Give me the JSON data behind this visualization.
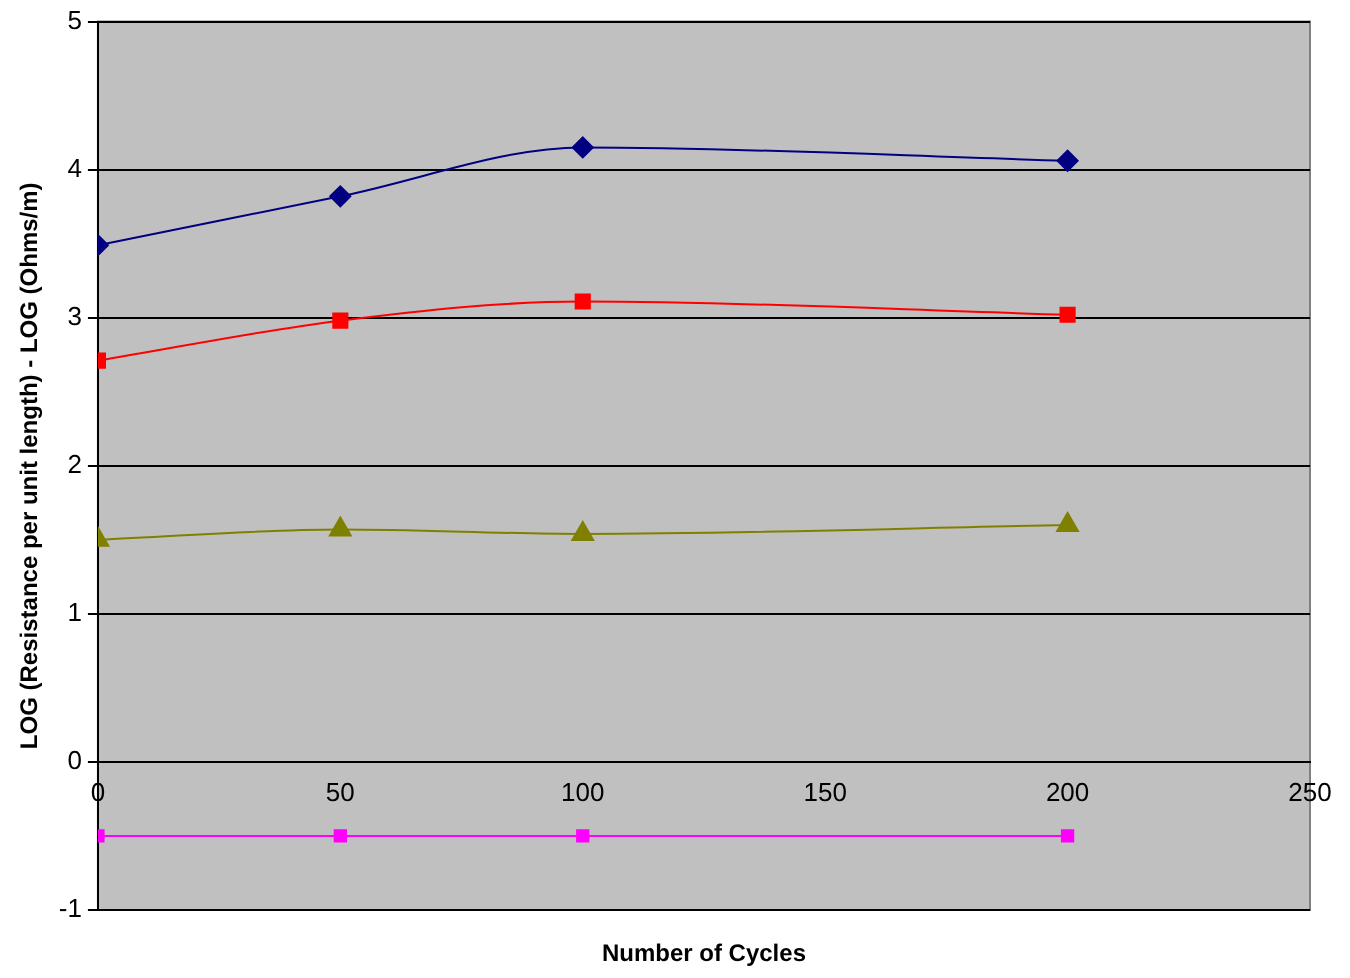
{
  "chart_data": {
    "type": "line",
    "xlabel": "Number of Cycles",
    "ylabel": "LOG (Resistance per unit length) - LOG (Ohms/m)",
    "x": [
      0,
      50,
      100,
      200
    ],
    "series": [
      {
        "color": "#000080",
        "marker": "diamond",
        "values": [
          3.49,
          3.82,
          4.15,
          4.06
        ]
      },
      {
        "color": "#ff0000",
        "marker": "square",
        "values": [
          2.71,
          2.98,
          3.11,
          3.02
        ]
      },
      {
        "color": "#808000",
        "marker": "triangle",
        "values": [
          1.5,
          1.57,
          1.54,
          1.6
        ]
      },
      {
        "color": "#ff00ff",
        "marker": "square",
        "values": [
          -0.5,
          -0.5,
          -0.5,
          -0.5
        ]
      }
    ],
    "xlim": [
      0,
      250
    ],
    "xticks": [
      0,
      50,
      100,
      150,
      200,
      250
    ],
    "ylim": [
      -1,
      5
    ],
    "yticks": [
      -1,
      0,
      1,
      2,
      3,
      4,
      5
    ],
    "grid": "y",
    "legend": false
  }
}
